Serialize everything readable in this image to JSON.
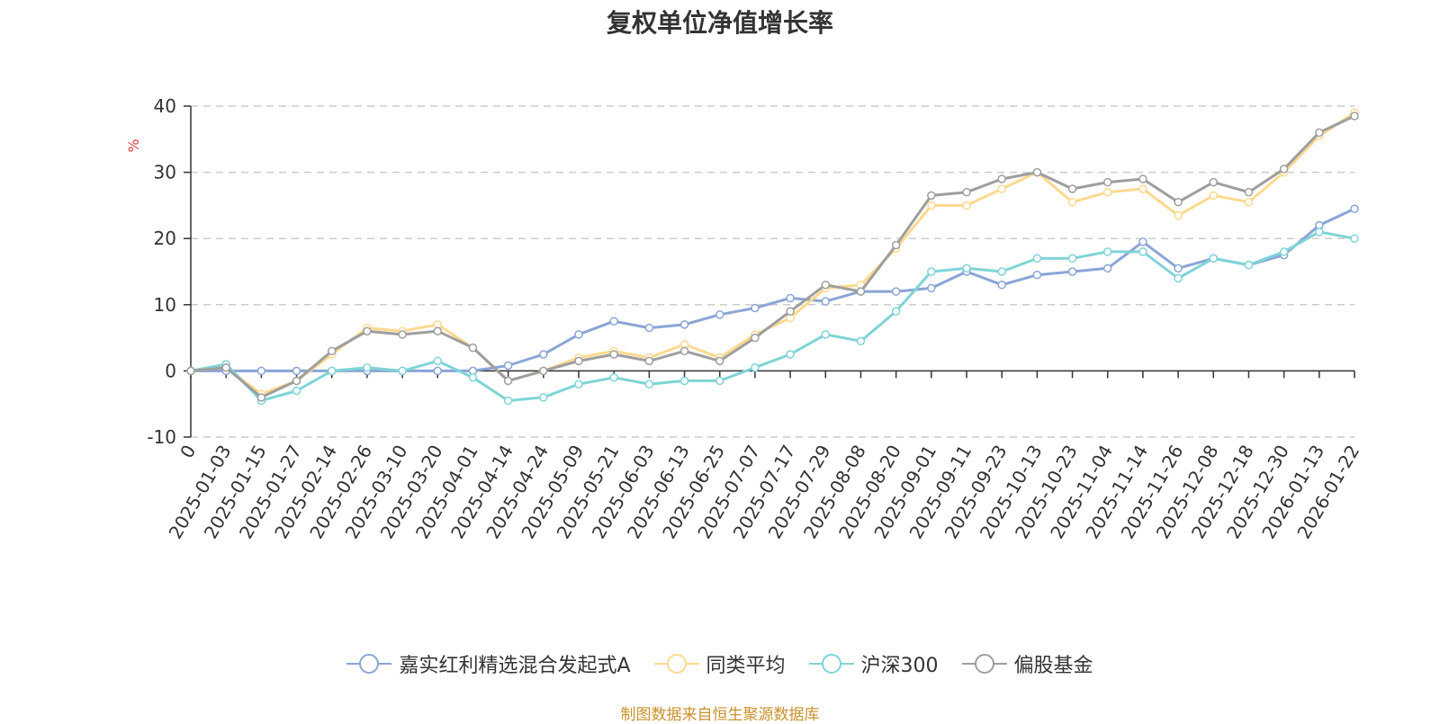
{
  "chart_data": {
    "type": "line",
    "title": "复权单位净值增长率",
    "ylabel": "%",
    "ylim": [
      -10,
      40
    ],
    "yticks": [
      "-10",
      "0",
      "10",
      "20",
      "30",
      "40"
    ],
    "xlabel": "",
    "x_tick_labels": [
      "0",
      "2025-01-03",
      "2025-01-15",
      "2025-01-27",
      "2025-02-14",
      "2025-02-26",
      "2025-03-10",
      "2025-03-20",
      "2025-04-01",
      "2025-04-14",
      "2025-04-24",
      "2025-05-09",
      "2025-05-21",
      "2025-06-03",
      "2025-06-13",
      "2025-06-25",
      "2025-07-07",
      "2025-07-17",
      "2025-07-29",
      "2025-08-08",
      "2025-08-20",
      "2025-09-01",
      "2025-09-11",
      "2025-09-23",
      "2025-10-13",
      "2025-10-23",
      "2025-11-04",
      "2025-11-14",
      "2025-11-26",
      "2025-12-08",
      "2025-12-18",
      "2025-12-30",
      "2026-01-13",
      "2026-01-22"
    ],
    "grid": true,
    "legend_position": "bottom",
    "series": [
      {
        "name": "嘉实红利精选混合发起式A",
        "color": "#8aa5d6",
        "values": [
          0,
          0,
          0,
          0,
          0,
          0,
          0,
          0,
          0,
          0.8,
          2.5,
          5.5,
          7.5,
          6.5,
          7,
          8.5,
          9.5,
          11,
          10.5,
          12,
          12,
          12.5,
          15,
          13,
          14.5,
          15,
          15.5,
          19.5,
          15.5,
          17,
          16,
          17.5,
          22,
          24.5
        ]
      },
      {
        "name": "同类平均",
        "color": "#fdd98e",
        "values": [
          0,
          0.5,
          -3.5,
          -1.5,
          2.5,
          6.5,
          6,
          7,
          3.5,
          -1.5,
          0,
          2,
          3,
          2,
          4,
          2,
          5.5,
          8,
          12.5,
          13,
          18.5,
          25,
          25,
          27.5,
          30,
          25.5,
          27,
          27.5,
          23.5,
          26.5,
          25.5,
          30,
          35.5,
          39
        ]
      },
      {
        "name": "沪深300",
        "color": "#7fd4d6",
        "values": [
          0,
          1,
          -4.5,
          -3,
          0,
          0.5,
          0,
          1.5,
          -1,
          -4.5,
          -4,
          -2,
          -1,
          -2,
          -1.5,
          -1.5,
          0.5,
          2.5,
          5.5,
          4.5,
          9,
          15,
          15.5,
          15,
          17,
          17,
          18,
          18,
          14,
          17,
          16,
          18,
          21,
          20
        ]
      },
      {
        "name": "偏股基金",
        "color": "#9e9e9e",
        "values": [
          0,
          0.5,
          -4,
          -1.5,
          3,
          6,
          5.5,
          6,
          3.5,
          -1.5,
          0,
          1.5,
          2.5,
          1.5,
          3,
          1.5,
          5,
          9,
          13,
          12,
          19,
          26.5,
          27,
          29,
          30,
          27.5,
          28.5,
          29,
          25.5,
          28.5,
          27,
          30.5,
          36,
          38.5
        ]
      }
    ]
  },
  "source_note": "制图数据来自恒生聚源数据库"
}
